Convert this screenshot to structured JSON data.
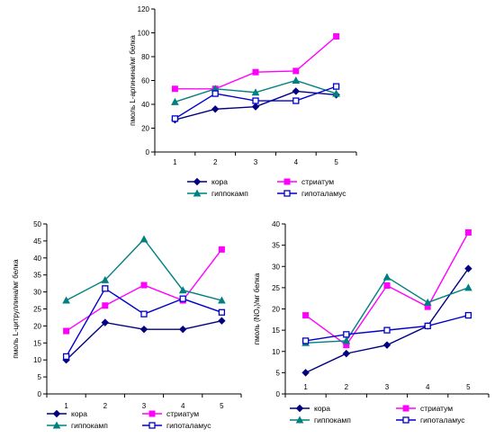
{
  "chart_data": [
    {
      "id": "chart-top",
      "type": "line",
      "title": "",
      "xlabel": "",
      "ylabel": "nmol L-arginine/mg tissue",
      "ylabel_display": "пмоль L-аргинина/мг белка",
      "categories": [
        "1",
        "2",
        "3",
        "4",
        "5"
      ],
      "ylim": [
        0,
        120
      ],
      "yticks": [
        0,
        20,
        40,
        60,
        80,
        100,
        120
      ],
      "grid": false,
      "series": [
        {
          "name": "кора",
          "color": "#000080",
          "marker": "diamond",
          "values": [
            27,
            36,
            38,
            51,
            48
          ]
        },
        {
          "name": "стриатум",
          "color": "#FF00FF",
          "marker": "square",
          "values": [
            53,
            53,
            67,
            68,
            97
          ]
        },
        {
          "name": "гиппокамп",
          "color": "#008080",
          "marker": "triangle",
          "values": [
            42,
            53,
            50,
            60,
            49
          ]
        },
        {
          "name": "гипоталамус",
          "color": "#0000CC",
          "marker": "open-square",
          "values": [
            28,
            49,
            43,
            43,
            55
          ]
        }
      ]
    },
    {
      "id": "chart-left",
      "type": "line",
      "title": "",
      "xlabel": "",
      "ylabel": "nmol L-citrulline/mg tissue",
      "ylabel_display": "пмоль L-цитруллина/мг белка",
      "categories": [
        "1",
        "2",
        "3",
        "4",
        "5"
      ],
      "ylim": [
        0,
        50
      ],
      "yticks": [
        0,
        5,
        10,
        15,
        20,
        25,
        30,
        35,
        40,
        45,
        50
      ],
      "grid": false,
      "series": [
        {
          "name": "кора",
          "color": "#000080",
          "marker": "diamond",
          "values": [
            10,
            21,
            19,
            19,
            21.5
          ]
        },
        {
          "name": "стриатум",
          "color": "#FF00FF",
          "marker": "square",
          "values": [
            18.5,
            26,
            32,
            27.5,
            42.5
          ]
        },
        {
          "name": "гиппокамп",
          "color": "#008080",
          "marker": "triangle",
          "values": [
            27.5,
            33.5,
            45.5,
            30.5,
            27.5
          ]
        },
        {
          "name": "гипоталамус",
          "color": "#0000CC",
          "marker": "open-square",
          "values": [
            11,
            31,
            23.5,
            28,
            24
          ]
        }
      ]
    },
    {
      "id": "chart-right",
      "type": "line",
      "title": "",
      "xlabel": "",
      "ylabel": "nmol (NOx)/mg tissue",
      "ylabel_display": "пмоль (NOₓ)/мг белка",
      "categories": [
        "1",
        "2",
        "3",
        "4",
        "5"
      ],
      "ylim": [
        0,
        40
      ],
      "yticks": [
        0,
        5,
        10,
        15,
        20,
        25,
        30,
        35,
        40
      ],
      "grid": false,
      "series": [
        {
          "name": "кора",
          "color": "#000080",
          "marker": "diamond",
          "values": [
            5,
            9.5,
            11.5,
            16,
            29.5
          ]
        },
        {
          "name": "стриатум",
          "color": "#FF00FF",
          "marker": "square",
          "values": [
            18.5,
            11.5,
            25.5,
            20.5,
            38
          ]
        },
        {
          "name": "гиппокамп",
          "color": "#008080",
          "marker": "triangle",
          "values": [
            12,
            12.5,
            27.5,
            21.5,
            25
          ]
        },
        {
          "name": "гипоталамус",
          "color": "#0000CC",
          "marker": "open-square",
          "values": [
            12.5,
            14,
            15,
            16,
            18.5
          ]
        }
      ]
    }
  ]
}
